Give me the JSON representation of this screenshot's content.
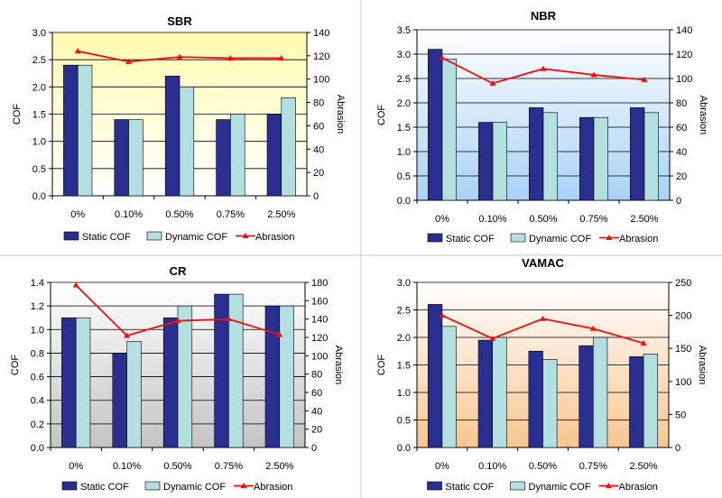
{
  "chart_data": [
    {
      "type": "bar",
      "title": "SBR",
      "categories": [
        "0%",
        "0.10%",
        "0.50%",
        "0.75%",
        "2.50%"
      ],
      "ylabel": "COF",
      "y2label": "Abrasion",
      "ylim": [
        0,
        3.0
      ],
      "yticks": [
        "0.0",
        "0.5",
        "1.0",
        "1.5",
        "2.0",
        "2.5",
        "3.0"
      ],
      "y2lim": [
        0,
        140
      ],
      "y2ticks": [
        "0",
        "20",
        "40",
        "60",
        "80",
        "100",
        "120",
        "140"
      ],
      "gradient": [
        "#fffbb0",
        "#ffffff"
      ],
      "legend": "bottom",
      "series": [
        {
          "name": "Static COF",
          "kind": "bar",
          "color": "#2a2e8f",
          "values": [
            2.4,
            1.4,
            2.2,
            1.4,
            1.5
          ]
        },
        {
          "name": "Dynamic COF",
          "kind": "bar",
          "color": "#b4dfe0",
          "values": [
            2.4,
            1.4,
            2.0,
            1.5,
            1.8
          ]
        },
        {
          "name": "Abrasion",
          "kind": "line",
          "axis": "right",
          "color": "#ee1111",
          "values": [
            124,
            115,
            119,
            118,
            118
          ]
        }
      ]
    },
    {
      "type": "bar",
      "title": "NBR",
      "categories": [
        "0%",
        "0.10%",
        "0.50%",
        "0.75%",
        "2.50%"
      ],
      "ylabel": "COF",
      "y2label": "Abrasion",
      "ylim": [
        0,
        3.5
      ],
      "yticks": [
        "0.0",
        "0.5",
        "1.0",
        "1.5",
        "2.0",
        "2.5",
        "3.0",
        "3.5"
      ],
      "y2lim": [
        0,
        140
      ],
      "y2ticks": [
        "0",
        "20",
        "40",
        "60",
        "80",
        "100",
        "120",
        "140"
      ],
      "gradient": [
        "#ffffff",
        "#a8d2f5"
      ],
      "legend": "bottom",
      "series": [
        {
          "name": "Static COF",
          "kind": "bar",
          "color": "#2a2e8f",
          "values": [
            3.1,
            1.6,
            1.9,
            1.7,
            1.9
          ]
        },
        {
          "name": "Dynamic COF",
          "kind": "bar",
          "color": "#b4dfe0",
          "values": [
            2.9,
            1.6,
            1.8,
            1.7,
            1.8
          ]
        },
        {
          "name": "Abrasion",
          "kind": "line",
          "axis": "right",
          "color": "#ee1111",
          "values": [
            117,
            96,
            108,
            103,
            99
          ]
        }
      ]
    },
    {
      "type": "bar",
      "title": "CR",
      "categories": [
        "0%",
        "0.10%",
        "0.50%",
        "0.75%",
        "2.50%"
      ],
      "ylabel": "COF",
      "y2label": "Abrasion",
      "ylim": [
        0,
        1.4
      ],
      "yticks": [
        "0.0",
        "0.2",
        "0.4",
        "0.6",
        "0.8",
        "1.0",
        "1.2",
        "1.4"
      ],
      "y2lim": [
        0,
        180
      ],
      "y2ticks": [
        "0",
        "20",
        "40",
        "60",
        "80",
        "100",
        "120",
        "140",
        "160",
        "180"
      ],
      "gradient": [
        "#ffffff",
        "#c4c4c4"
      ],
      "legend": "bottom",
      "series": [
        {
          "name": "Static COF",
          "kind": "bar",
          "color": "#2a2e8f",
          "values": [
            1.1,
            0.8,
            1.1,
            1.3,
            1.2
          ]
        },
        {
          "name": "Dynamic COF",
          "kind": "bar",
          "color": "#b4dfe0",
          "values": [
            1.1,
            0.9,
            1.2,
            1.3,
            1.2
          ]
        },
        {
          "name": "Abrasion",
          "kind": "line",
          "axis": "right",
          "color": "#ee1111",
          "values": [
            177,
            122,
            138,
            140,
            123
          ]
        }
      ]
    },
    {
      "type": "bar",
      "title": "VAMAC",
      "categories": [
        "0%",
        "0.10%",
        "0.50%",
        "0.75%",
        "2.50%"
      ],
      "ylabel": "COF",
      "y2label": "Abrasion",
      "ylim": [
        0,
        3.0
      ],
      "yticks": [
        "0.0",
        "0.5",
        "1.0",
        "1.5",
        "2.0",
        "2.5",
        "3.0"
      ],
      "y2lim": [
        0,
        250
      ],
      "y2ticks": [
        "0",
        "50",
        "100",
        "150",
        "200",
        "250"
      ],
      "gradient": [
        "#ffffff",
        "#f8c690"
      ],
      "legend": "bottom",
      "series": [
        {
          "name": "Static COF",
          "kind": "bar",
          "color": "#2a2e8f",
          "values": [
            2.6,
            1.95,
            1.75,
            1.85,
            1.65
          ]
        },
        {
          "name": "Dynamic COF",
          "kind": "bar",
          "color": "#b4dfe0",
          "values": [
            2.2,
            2.0,
            1.6,
            2.0,
            1.7
          ]
        },
        {
          "name": "Abrasion",
          "kind": "line",
          "axis": "right",
          "color": "#ee1111",
          "values": [
            200,
            165,
            195,
            180,
            158
          ]
        }
      ]
    }
  ]
}
